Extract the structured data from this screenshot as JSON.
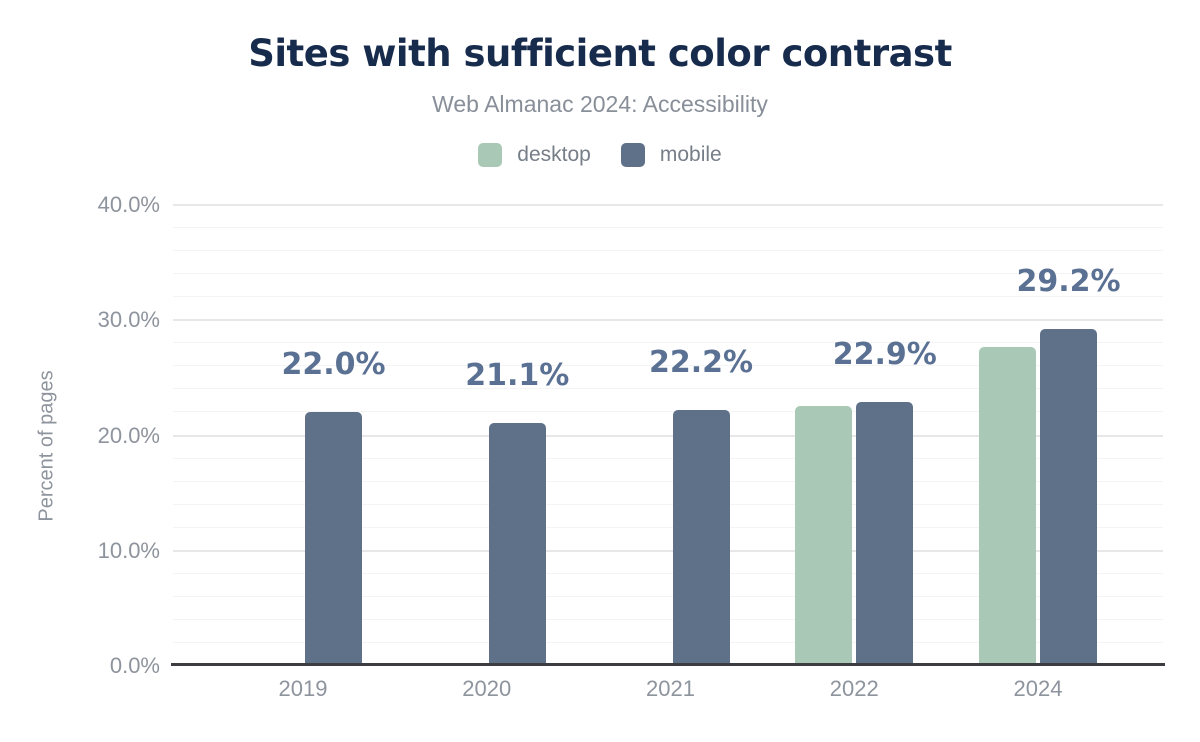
{
  "chart_data": {
    "type": "bar",
    "title": "Sites with sufficient color contrast",
    "subtitle": "Web Almanac 2024: Accessibility",
    "ylabel": "Percent of pages",
    "xlabel": "",
    "categories": [
      "2019",
      "2020",
      "2021",
      "2022",
      "2024"
    ],
    "series": [
      {
        "name": "desktop",
        "color": "#a9c9b6",
        "values": [
          null,
          null,
          null,
          22.6,
          27.7
        ]
      },
      {
        "name": "mobile",
        "color": "#5f7189",
        "values": [
          22.0,
          21.1,
          22.2,
          22.9,
          29.2
        ]
      }
    ],
    "data_labels": [
      "22.0%",
      "21.1%",
      "22.2%",
      "22.9%",
      "29.2%"
    ],
    "data_label_series": "mobile",
    "ylim": [
      0,
      40
    ],
    "yticks": [
      {
        "value": 0,
        "label": "0.0%"
      },
      {
        "value": 10,
        "label": "10.0%"
      },
      {
        "value": 20,
        "label": "20.0%"
      },
      {
        "value": 30,
        "label": "30.0%"
      },
      {
        "value": 40,
        "label": "40.0%"
      }
    ],
    "grid": {
      "orientation": "horizontal",
      "minor_step": 2,
      "major_step": 10
    },
    "legend_position": "top"
  },
  "colors": {
    "background": "#ffffff",
    "title": "#172b4d",
    "subtitle": "#888f99",
    "axis_text": "#8e949d",
    "legend_text": "#767e88",
    "data_label": "#5a7193",
    "axis_line": "#3b3d41",
    "grid_major": "#e7e7e7",
    "grid_minor": "#f4f4f4",
    "bar_desktop": "#a9c9b6",
    "bar_mobile": "#5f7189"
  }
}
